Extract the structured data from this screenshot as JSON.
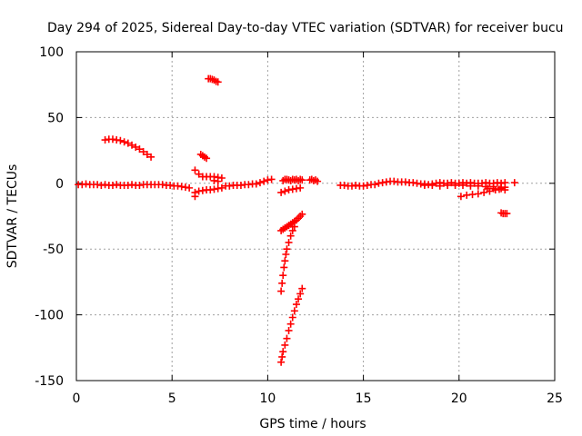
{
  "chart_data": {
    "type": "scatter",
    "title": "Day 294 of 2025, Sidereal Day-to-day VTEC variation (SDTVAR) for receiver bucu",
    "xlabel": "GPS time / hours",
    "ylabel": "SDTVAR / TECUs",
    "xlim": [
      0,
      25
    ],
    "ylim": [
      -150,
      100
    ],
    "xticks": [
      0,
      5,
      10,
      15,
      20,
      25
    ],
    "yticks": [
      -150,
      -100,
      -50,
      0,
      50,
      100
    ],
    "grid": true,
    "marker": "+",
    "color": "#ff0000",
    "series": [
      {
        "points": [
          [
            0.1,
            -1
          ],
          [
            0.3,
            -1
          ],
          [
            0.5,
            -0.5
          ],
          [
            0.7,
            -1
          ],
          [
            0.9,
            -1
          ],
          [
            1.1,
            -1
          ],
          [
            1.3,
            -1.5
          ],
          [
            1.5,
            -1
          ],
          [
            1.7,
            -1.5
          ],
          [
            1.9,
            -1.5
          ],
          [
            2.1,
            -1
          ],
          [
            2.3,
            -1.5
          ],
          [
            2.5,
            -1.5
          ],
          [
            2.7,
            -1.5
          ],
          [
            2.9,
            -1
          ],
          [
            3.1,
            -1.5
          ],
          [
            3.3,
            -1.5
          ],
          [
            3.5,
            -1
          ],
          [
            3.7,
            -1
          ],
          [
            3.9,
            -1
          ],
          [
            4.1,
            -1
          ],
          [
            4.3,
            -1
          ],
          [
            4.5,
            -1
          ],
          [
            4.7,
            -1.5
          ],
          [
            4.9,
            -1.5
          ],
          [
            5.1,
            -2
          ],
          [
            5.3,
            -2
          ],
          [
            5.5,
            -2.5
          ],
          [
            5.7,
            -3
          ],
          [
            5.9,
            -3.5
          ],
          [
            1.5,
            33
          ],
          [
            1.7,
            33.5
          ],
          [
            1.9,
            33.5
          ],
          [
            2.1,
            33
          ],
          [
            2.3,
            32.5
          ],
          [
            2.5,
            31.5
          ],
          [
            2.7,
            30.5
          ],
          [
            2.9,
            29
          ],
          [
            3.1,
            27.5
          ],
          [
            3.3,
            26
          ],
          [
            3.5,
            24
          ],
          [
            3.7,
            22
          ],
          [
            3.9,
            20
          ],
          [
            6.2,
            -7
          ],
          [
            6.2,
            -10
          ],
          [
            6.4,
            -6
          ],
          [
            6.6,
            -5.5
          ],
          [
            6.8,
            -5
          ],
          [
            7.0,
            -5
          ],
          [
            7.2,
            -4.5
          ],
          [
            7.4,
            -4
          ],
          [
            7.6,
            -3.5
          ],
          [
            6.2,
            10
          ],
          [
            6.4,
            7
          ],
          [
            6.6,
            5
          ],
          [
            6.8,
            5
          ],
          [
            7.0,
            5
          ],
          [
            7.2,
            5
          ],
          [
            7.4,
            4.5
          ],
          [
            7.6,
            4
          ],
          [
            7.2,
            2
          ],
          [
            7.4,
            1.5
          ],
          [
            6.5,
            22
          ],
          [
            6.6,
            21
          ],
          [
            6.7,
            20
          ],
          [
            6.8,
            19
          ],
          [
            6.9,
            79.5
          ],
          [
            7.0,
            79.5
          ],
          [
            7.1,
            79
          ],
          [
            7.2,
            78.5
          ],
          [
            7.3,
            77.5
          ],
          [
            7.4,
            77
          ],
          [
            7.8,
            -2
          ],
          [
            8.0,
            -2
          ],
          [
            8.2,
            -1.5
          ],
          [
            8.4,
            -1.5
          ],
          [
            8.6,
            -1.5
          ],
          [
            8.8,
            -1
          ],
          [
            9.0,
            -1
          ],
          [
            9.2,
            -0.5
          ],
          [
            9.4,
            -0.5
          ],
          [
            9.6,
            0.5
          ],
          [
            9.8,
            1.5
          ],
          [
            10.0,
            2.5
          ],
          [
            10.2,
            3
          ],
          [
            10.7,
            -7
          ],
          [
            10.9,
            -6
          ],
          [
            11.1,
            -5
          ],
          [
            11.3,
            -4.5
          ],
          [
            11.5,
            -4
          ],
          [
            11.7,
            -3.5
          ],
          [
            10.8,
            2
          ],
          [
            10.9,
            3
          ],
          [
            11.0,
            3
          ],
          [
            11.1,
            2.5
          ],
          [
            11.2,
            2
          ],
          [
            11.3,
            3
          ],
          [
            11.4,
            2.5
          ],
          [
            11.5,
            3
          ],
          [
            11.6,
            2
          ],
          [
            11.7,
            3
          ],
          [
            11.8,
            2.5
          ],
          [
            12.2,
            2.5
          ],
          [
            12.3,
            3
          ],
          [
            12.4,
            2
          ],
          [
            12.5,
            2.5
          ],
          [
            12.6,
            1.5
          ],
          [
            10.7,
            -36
          ],
          [
            10.8,
            -35
          ],
          [
            10.9,
            -34
          ],
          [
            11.0,
            -33
          ],
          [
            11.1,
            -32
          ],
          [
            11.2,
            -31
          ],
          [
            11.3,
            -30
          ],
          [
            11.4,
            -29
          ],
          [
            11.5,
            -28
          ],
          [
            11.6,
            -26.5
          ],
          [
            11.7,
            -25
          ],
          [
            11.8,
            -23.5
          ],
          [
            10.7,
            -82
          ],
          [
            10.75,
            -76
          ],
          [
            10.8,
            -70
          ],
          [
            10.85,
            -64
          ],
          [
            10.9,
            -59
          ],
          [
            10.95,
            -54
          ],
          [
            11.0,
            -50
          ],
          [
            11.1,
            -45
          ],
          [
            11.2,
            -40
          ],
          [
            11.3,
            -36
          ],
          [
            11.4,
            -33
          ],
          [
            10.7,
            -136
          ],
          [
            10.75,
            -132
          ],
          [
            10.8,
            -128
          ],
          [
            10.9,
            -123
          ],
          [
            11.0,
            -118
          ],
          [
            11.1,
            -112
          ],
          [
            11.2,
            -107
          ],
          [
            11.3,
            -102
          ],
          [
            11.4,
            -97
          ],
          [
            11.5,
            -92
          ],
          [
            11.6,
            -88
          ],
          [
            11.7,
            -84
          ],
          [
            11.8,
            -80
          ],
          [
            13.8,
            -1.5
          ],
          [
            14.0,
            -1.5
          ],
          [
            14.2,
            -2
          ],
          [
            14.4,
            -2
          ],
          [
            14.6,
            -1.5
          ],
          [
            14.8,
            -2
          ],
          [
            15.0,
            -2
          ],
          [
            15.2,
            -1.5
          ],
          [
            15.4,
            -1
          ],
          [
            15.6,
            -1
          ],
          [
            15.8,
            0
          ],
          [
            16.0,
            0.5
          ],
          [
            16.2,
            1
          ],
          [
            16.4,
            1.5
          ],
          [
            16.6,
            1.5
          ],
          [
            16.8,
            1
          ],
          [
            17.0,
            1
          ],
          [
            17.2,
            1
          ],
          [
            17.4,
            0.5
          ],
          [
            17.6,
            0.5
          ],
          [
            17.8,
            0
          ],
          [
            18.0,
            -0.5
          ],
          [
            18.2,
            -0.5
          ],
          [
            18.4,
            -1
          ],
          [
            18.6,
            -0.5
          ],
          [
            18.8,
            0
          ],
          [
            19.0,
            0.5
          ],
          [
            19.2,
            0
          ],
          [
            19.4,
            0
          ],
          [
            19.6,
            0.5
          ],
          [
            19.8,
            0
          ],
          [
            20.0,
            0
          ],
          [
            20.2,
            0.5
          ],
          [
            20.4,
            0
          ],
          [
            20.6,
            0.5
          ],
          [
            20.8,
            0
          ],
          [
            21.0,
            0
          ],
          [
            21.2,
            0
          ],
          [
            21.4,
            0.5
          ],
          [
            21.6,
            0
          ],
          [
            21.8,
            0
          ],
          [
            22.0,
            0.5
          ],
          [
            22.2,
            0
          ],
          [
            22.4,
            0.5
          ],
          [
            22.9,
            0.5
          ],
          [
            18.2,
            -1.5
          ],
          [
            18.6,
            -1.5
          ],
          [
            19.0,
            -2
          ],
          [
            19.4,
            -1.5
          ],
          [
            19.8,
            -1.5
          ],
          [
            20.2,
            -1.5
          ],
          [
            20.6,
            -2
          ],
          [
            21.0,
            -2
          ],
          [
            21.4,
            -2.5
          ],
          [
            21.8,
            -2.5
          ],
          [
            22.2,
            -3
          ],
          [
            20.1,
            -10
          ],
          [
            20.4,
            -9
          ],
          [
            20.7,
            -8.5
          ],
          [
            21.0,
            -8
          ],
          [
            21.3,
            -7
          ],
          [
            21.6,
            -6
          ],
          [
            21.9,
            -5
          ],
          [
            22.2,
            -4
          ],
          [
            22.4,
            -3
          ],
          [
            21.5,
            -4
          ],
          [
            21.8,
            -4
          ],
          [
            22.1,
            -4.5
          ],
          [
            22.4,
            -5
          ],
          [
            22.2,
            -22.5
          ],
          [
            22.3,
            -23
          ],
          [
            22.4,
            -23
          ],
          [
            22.5,
            -23
          ]
        ]
      }
    ]
  }
}
